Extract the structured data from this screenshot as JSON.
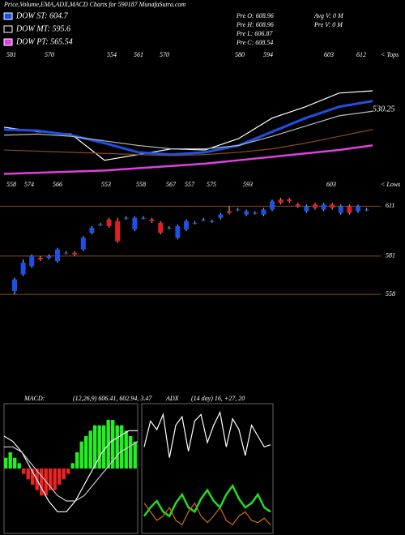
{
  "header": {
    "title": "Price,Volume,EMA,ADX,MACD Charts for 590187 MunafaSutra.com",
    "legend": [
      {
        "label": "DOW ST: 604.7",
        "color": "#1e50e6"
      },
      {
        "label": "DOW MT: 595.6",
        "color": "#000000"
      },
      {
        "label": "DOW PT: 565.54",
        "color": "#e040e0"
      }
    ],
    "info_left": [
      "Pre  O: 608.96",
      "Pre  H: 608.96",
      "Pre  L: 606.87",
      "Pre  C: 608.54"
    ],
    "info_right": [
      "Avg V: 0  M",
      "Pre  V: 0  M"
    ]
  },
  "chart_data": [
    {
      "type": "line",
      "ylim": [
        530,
        651
      ],
      "top_labels": [
        "581",
        "570",
        "554",
        "561",
        "570",
        "580",
        "594",
        "603",
        "612"
      ],
      "tops_label": "< Tops",
      "low_labels": [
        "558",
        "574",
        "566",
        "553",
        "558",
        "567",
        "557",
        "575",
        "593",
        "603"
      ],
      "lows_label": "< Lows",
      "annotation": "530.25",
      "series": [
        {
          "color": "#ffffff",
          "values": [
            582,
            578,
            576,
            553,
            558,
            563,
            562,
            572,
            590,
            600,
            612,
            614
          ]
        },
        {
          "color": "#1e50e6",
          "values": [
            580,
            579,
            575,
            568,
            560,
            558,
            560,
            566,
            578,
            590,
            600,
            605
          ]
        },
        {
          "color": "#bbbbbb",
          "values": [
            575,
            576,
            574,
            570,
            566,
            563,
            563,
            566,
            574,
            583,
            592,
            596
          ]
        },
        {
          "color": "#8b4a1a",
          "values": [
            562,
            561,
            560,
            559,
            558,
            557,
            558,
            560,
            563,
            568,
            574,
            580
          ]
        },
        {
          "color": "#e040e0",
          "values": [
            541,
            542,
            543,
            544,
            546,
            548,
            550,
            553,
            556,
            559,
            562,
            566
          ]
        }
      ]
    },
    {
      "type": "candlestick",
      "ylim": [
        540,
        618
      ],
      "levels": [
        611,
        581,
        558
      ],
      "level_color": "#8b4a1a",
      "up_color": "#1e50e6",
      "down_color": "#e02020",
      "open": [
        560,
        570,
        575,
        580,
        580,
        578,
        583,
        583,
        585,
        595,
        600,
        603,
        602,
        604,
        597,
        604,
        603,
        601,
        598,
        592,
        597,
        601,
        603,
        602,
        604,
        608,
        609,
        606,
        607,
        606,
        609,
        615,
        615,
        612,
        608,
        612,
        609,
        612,
        607,
        611,
        608,
        609
      ],
      "high": [
        568,
        579,
        582,
        581,
        582,
        586,
        584,
        584,
        593,
        599,
        601,
        604,
        604,
        605,
        605,
        605,
        604,
        602,
        599,
        600,
        603,
        602,
        604,
        603,
        607,
        611,
        610,
        609,
        608,
        610,
        615,
        616,
        616,
        613,
        612,
        613,
        613,
        613,
        612,
        612,
        612,
        610
      ],
      "low": [
        558,
        569,
        574,
        578,
        579,
        577,
        582,
        581,
        584,
        594,
        599,
        598,
        589,
        603,
        596,
        603,
        601,
        594,
        597,
        591,
        596,
        600,
        602,
        601,
        603,
        606,
        608,
        605,
        606,
        605,
        608,
        612,
        613,
        610,
        607,
        609,
        608,
        609,
        606,
        606,
        607,
        608
      ],
      "close": [
        567,
        577,
        581,
        579,
        581,
        585,
        583,
        582,
        592,
        598,
        600,
        599,
        590,
        604,
        604,
        604,
        602,
        595,
        598,
        599,
        602,
        601,
        603,
        602,
        606,
        607,
        609,
        608,
        607,
        609,
        614,
        613,
        614,
        611,
        611,
        610,
        612,
        610,
        611,
        607,
        611,
        609
      ]
    },
    {
      "type": "macd",
      "title": "MACD:",
      "params": "(12,26,9) 606.41, 602.94, 3.47",
      "ylim": [
        -12,
        12
      ],
      "histogram": [
        2,
        3,
        2,
        1,
        -1,
        -2,
        -3,
        -4,
        -5,
        -5,
        -4,
        -4,
        -3,
        -2,
        -1,
        1,
        3,
        5,
        6,
        7,
        8,
        8,
        8,
        9,
        9,
        8,
        8,
        7,
        6,
        5
      ],
      "series": [
        {
          "color": "#ffffff",
          "values": [
            6,
            5,
            3,
            0,
            -3,
            -6,
            -8,
            -8,
            -6,
            -3,
            0,
            3,
            5,
            6,
            7,
            7
          ]
        },
        {
          "color": "#cccccc",
          "values": [
            4,
            4,
            3,
            1,
            -1,
            -3,
            -5,
            -6,
            -6,
            -5,
            -3,
            -1,
            1,
            3,
            4,
            5
          ]
        }
      ]
    },
    {
      "type": "adx",
      "title": "ADX",
      "params": "(14 day) 16, +27, 20",
      "ylim": [
        0,
        60
      ],
      "series": [
        {
          "color": "#ffffff",
          "values": [
            40,
            52,
            48,
            55,
            35,
            50,
            54,
            38,
            52,
            55,
            42,
            50,
            56,
            40,
            53,
            48,
            36,
            50,
            45,
            40,
            41
          ]
        },
        {
          "color": "#22dd22",
          "values": [
            8,
            12,
            15,
            10,
            8,
            14,
            18,
            12,
            10,
            16,
            20,
            15,
            12,
            18,
            22,
            16,
            12,
            14,
            18,
            12,
            10
          ]
        },
        {
          "color": "#d07010",
          "values": [
            14,
            10,
            6,
            8,
            12,
            6,
            4,
            10,
            14,
            8,
            5,
            8,
            12,
            6,
            4,
            8,
            10,
            6,
            5,
            7,
            4
          ]
        }
      ]
    }
  ]
}
